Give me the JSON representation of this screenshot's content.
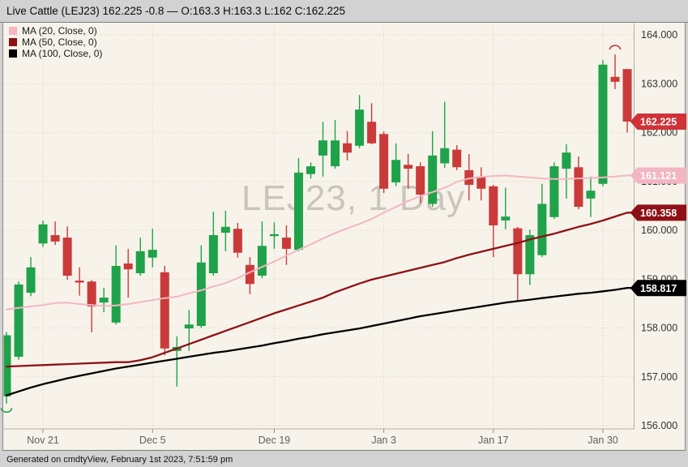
{
  "header": {
    "title": "Live Cattle (LEJ23) 162.225 -0.8 — O:163.3 H:163.3 L:162 C:162.225"
  },
  "footer": {
    "text": "Generated on cmdtyView, February 1st 2023, 7:51:59 pm"
  },
  "watermark": "LEJ23, 1 Day",
  "colors": {
    "up": "#1fa24a",
    "down": "#cb3a3a",
    "background": "#f7f3ea",
    "grid": "#d5ccbb",
    "separator": "#b3ada0",
    "y_label": "#333333",
    "x_label": "#606060",
    "badge_text": "#ffffff",
    "last_price_badge": "#d03238"
  },
  "chart_data": {
    "type": "candlestick",
    "symbol": "LEJ23",
    "interval": "1 Day",
    "last_price": "162.225",
    "change": "-0.8",
    "ohlc": {
      "open": 163.3,
      "high": 163.3,
      "low": 162.0,
      "close": 162.225
    },
    "y_axis": {
      "min": 156,
      "max": 164,
      "step": 1,
      "labels": [
        "164.000",
        "163.000",
        "162.000",
        "161.000",
        "160.000",
        "159.000",
        "158.000",
        "157.000",
        "156.000"
      ]
    },
    "x_axis": {
      "ticks": [
        {
          "label": "Nov 21",
          "index": 3
        },
        {
          "label": "Dec 5",
          "index": 12
        },
        {
          "label": "Dec 19",
          "index": 22
        },
        {
          "label": "Jan 3",
          "index": 31
        },
        {
          "label": "Jan 17",
          "index": 40
        },
        {
          "label": "Jan 30",
          "index": 49
        }
      ]
    },
    "price_badge": {
      "label": "162.225",
      "price": 162.225,
      "color": "#d03238"
    },
    "candles": [
      {
        "d": "Nov 16",
        "o": 156.6,
        "h": 157.92,
        "l": 156.45,
        "c": 157.85
      },
      {
        "d": "Nov 17",
        "o": 157.41,
        "h": 158.95,
        "l": 157.35,
        "c": 158.89
      },
      {
        "d": "Nov 18",
        "o": 158.72,
        "h": 159.45,
        "l": 158.65,
        "c": 159.24
      },
      {
        "d": "Nov 21",
        "o": 159.73,
        "h": 160.2,
        "l": 159.66,
        "c": 160.12
      },
      {
        "d": "Nov 22",
        "o": 159.9,
        "h": 160.18,
        "l": 159.7,
        "c": 159.77
      },
      {
        "d": "Nov 23",
        "o": 159.85,
        "h": 160.08,
        "l": 158.99,
        "c": 159.07
      },
      {
        "d": "Nov 25",
        "o": 158.97,
        "h": 159.24,
        "l": 158.66,
        "c": 158.93
      },
      {
        "d": "Nov 28",
        "o": 158.95,
        "h": 158.98,
        "l": 157.91,
        "c": 158.44
      },
      {
        "d": "Nov 29",
        "o": 158.52,
        "h": 158.82,
        "l": 158.32,
        "c": 158.62
      },
      {
        "d": "Nov 30",
        "o": 158.11,
        "h": 159.69,
        "l": 158.07,
        "c": 159.27
      },
      {
        "d": "Dec 1",
        "o": 159.32,
        "h": 159.62,
        "l": 158.62,
        "c": 159.2
      },
      {
        "d": "Dec 2",
        "o": 159.12,
        "h": 159.85,
        "l": 159.07,
        "c": 159.57
      },
      {
        "d": "Dec 5",
        "o": 159.44,
        "h": 160.03,
        "l": 159.24,
        "c": 159.6
      },
      {
        "d": "Dec 6",
        "o": 159.14,
        "h": 159.27,
        "l": 157.44,
        "c": 157.58
      },
      {
        "d": "Dec 7",
        "o": 157.53,
        "h": 157.83,
        "l": 156.8,
        "c": 157.61
      },
      {
        "d": "Dec 8",
        "o": 157.99,
        "h": 158.37,
        "l": 157.53,
        "c": 158.07
      },
      {
        "d": "Dec 9",
        "o": 158.04,
        "h": 159.69,
        "l": 158.0,
        "c": 159.34
      },
      {
        "d": "Dec 12",
        "o": 159.12,
        "h": 160.38,
        "l": 159.07,
        "c": 159.9
      },
      {
        "d": "Dec 13",
        "o": 159.95,
        "h": 160.4,
        "l": 159.57,
        "c": 160.07
      },
      {
        "d": "Dec 14",
        "o": 160.03,
        "h": 160.15,
        "l": 159.44,
        "c": 159.54
      },
      {
        "d": "Dec 15",
        "o": 159.29,
        "h": 159.45,
        "l": 158.69,
        "c": 158.9
      },
      {
        "d": "Dec 16",
        "o": 159.07,
        "h": 160.18,
        "l": 159.02,
        "c": 159.68
      },
      {
        "d": "Dec 19",
        "o": 159.88,
        "h": 160.16,
        "l": 159.62,
        "c": 159.92
      },
      {
        "d": "Dec 20",
        "o": 159.85,
        "h": 160.1,
        "l": 159.29,
        "c": 159.62
      },
      {
        "d": "Dec 21",
        "o": 159.6,
        "h": 161.48,
        "l": 159.57,
        "c": 161.18
      },
      {
        "d": "Dec 22",
        "o": 161.15,
        "h": 161.39,
        "l": 161.06,
        "c": 161.31
      },
      {
        "d": "Dec 23",
        "o": 161.53,
        "h": 162.22,
        "l": 161.1,
        "c": 161.84
      },
      {
        "d": "Dec 27",
        "o": 161.31,
        "h": 162.26,
        "l": 161.26,
        "c": 161.84
      },
      {
        "d": "Dec 28",
        "o": 161.78,
        "h": 162.03,
        "l": 161.43,
        "c": 161.59
      },
      {
        "d": "Dec 29",
        "o": 161.73,
        "h": 162.77,
        "l": 161.68,
        "c": 162.47
      },
      {
        "d": "Dec 30",
        "o": 162.22,
        "h": 162.6,
        "l": 161.76,
        "c": 161.78
      },
      {
        "d": "Jan 3",
        "o": 161.97,
        "h": 162.02,
        "l": 160.76,
        "c": 160.85
      },
      {
        "d": "Jan 4",
        "o": 160.98,
        "h": 161.78,
        "l": 160.9,
        "c": 161.44
      },
      {
        "d": "Jan 5",
        "o": 161.34,
        "h": 161.56,
        "l": 160.85,
        "c": 161.26
      },
      {
        "d": "Jan 6",
        "o": 161.31,
        "h": 161.39,
        "l": 160.56,
        "c": 160.73
      },
      {
        "d": "Jan 9",
        "o": 160.54,
        "h": 162.03,
        "l": 160.48,
        "c": 161.53
      },
      {
        "d": "Jan 10",
        "o": 161.37,
        "h": 162.63,
        "l": 161.28,
        "c": 161.68
      },
      {
        "d": "Jan 11",
        "o": 161.65,
        "h": 161.74,
        "l": 161.23,
        "c": 161.29
      },
      {
        "d": "Jan 12",
        "o": 161.23,
        "h": 161.56,
        "l": 160.61,
        "c": 160.93
      },
      {
        "d": "Jan 13",
        "o": 161.1,
        "h": 161.29,
        "l": 160.61,
        "c": 160.85
      },
      {
        "d": "Jan 17",
        "o": 160.9,
        "h": 160.93,
        "l": 159.45,
        "c": 160.1
      },
      {
        "d": "Jan 18",
        "o": 160.2,
        "h": 160.87,
        "l": 160.02,
        "c": 160.28
      },
      {
        "d": "Jan 19",
        "o": 160.04,
        "h": 160.07,
        "l": 158.57,
        "c": 159.1
      },
      {
        "d": "Jan 20",
        "o": 159.1,
        "h": 160.01,
        "l": 158.88,
        "c": 159.9
      },
      {
        "d": "Jan 23",
        "o": 159.49,
        "h": 160.95,
        "l": 159.45,
        "c": 160.54
      },
      {
        "d": "Jan 24",
        "o": 160.27,
        "h": 161.39,
        "l": 160.23,
        "c": 161.31
      },
      {
        "d": "Jan 25",
        "o": 161.26,
        "h": 161.76,
        "l": 160.65,
        "c": 161.59
      },
      {
        "d": "Jan 26",
        "o": 161.29,
        "h": 161.51,
        "l": 160.43,
        "c": 160.48
      },
      {
        "d": "Jan 27",
        "o": 160.65,
        "h": 161.1,
        "l": 160.27,
        "c": 160.81
      },
      {
        "d": "Jan 30",
        "o": 160.95,
        "h": 163.48,
        "l": 160.9,
        "c": 163.39
      },
      {
        "d": "Jan 31",
        "o": 163.14,
        "h": 163.6,
        "l": 162.89,
        "c": 163.04
      },
      {
        "d": "Feb 1",
        "o": 163.3,
        "h": 163.3,
        "l": 162.0,
        "c": 162.225
      }
    ],
    "ma_series": [
      {
        "name": "MA (20, Close, 0)",
        "period": 20,
        "color": "#f3b6c2",
        "badge": "161.121",
        "badge_price": 161.121,
        "width": 2,
        "values": [
          158.38,
          158.41,
          158.44,
          158.47,
          158.51,
          158.52,
          158.49,
          158.47,
          158.45,
          158.46,
          158.49,
          158.53,
          158.57,
          158.61,
          158.64,
          158.71,
          158.77,
          158.85,
          158.92,
          159.02,
          159.14,
          159.25,
          159.36,
          159.48,
          159.6,
          159.71,
          159.83,
          159.94,
          160.04,
          160.13,
          160.23,
          160.36,
          160.48,
          160.6,
          160.7,
          160.78,
          160.87,
          160.99,
          161.06,
          161.09,
          161.11,
          161.12,
          161.1,
          161.08,
          161.06,
          161.05,
          161.05,
          161.06,
          161.07,
          161.08,
          161.1,
          161.12
        ]
      },
      {
        "name": "MA (50, Close, 0)",
        "period": 50,
        "color": "#8e1016",
        "badge": "160.358",
        "badge_price": 160.358,
        "width": 2.3,
        "values": [
          157.21,
          157.22,
          157.23,
          157.24,
          157.25,
          157.26,
          157.27,
          157.28,
          157.29,
          157.3,
          157.3,
          157.34,
          157.4,
          157.49,
          157.58,
          157.67,
          157.76,
          157.85,
          157.94,
          158.03,
          158.12,
          158.21,
          158.3,
          158.38,
          158.46,
          158.54,
          158.62,
          158.73,
          158.82,
          158.91,
          158.99,
          159.05,
          159.11,
          159.17,
          159.23,
          159.29,
          159.35,
          159.43,
          159.5,
          159.56,
          159.62,
          159.68,
          159.74,
          159.81,
          159.87,
          159.93,
          160.0,
          160.07,
          160.13,
          160.2,
          160.28,
          160.36
        ]
      },
      {
        "name": "MA (100, Close, 0)",
        "period": 100,
        "color": "#000000",
        "badge": "158.817",
        "badge_price": 158.817,
        "width": 2.3,
        "values": [
          156.62,
          156.7,
          156.78,
          156.85,
          156.91,
          156.97,
          157.02,
          157.07,
          157.12,
          157.17,
          157.21,
          157.25,
          157.29,
          157.33,
          157.37,
          157.41,
          157.45,
          157.49,
          157.52,
          157.56,
          157.6,
          157.64,
          157.69,
          157.73,
          157.78,
          157.82,
          157.87,
          157.91,
          157.95,
          157.99,
          158.04,
          158.09,
          158.14,
          158.19,
          158.24,
          158.28,
          158.32,
          158.36,
          158.4,
          158.44,
          158.48,
          158.52,
          158.55,
          158.58,
          158.61,
          158.64,
          158.67,
          158.7,
          158.72,
          158.75,
          158.78,
          158.82
        ]
      }
    ],
    "markers": [
      {
        "shape": "arc-below",
        "index": 0,
        "price": 156.36,
        "color": "up"
      },
      {
        "shape": "arc-above",
        "index": 50,
        "price": 163.7,
        "color": "down"
      }
    ]
  }
}
